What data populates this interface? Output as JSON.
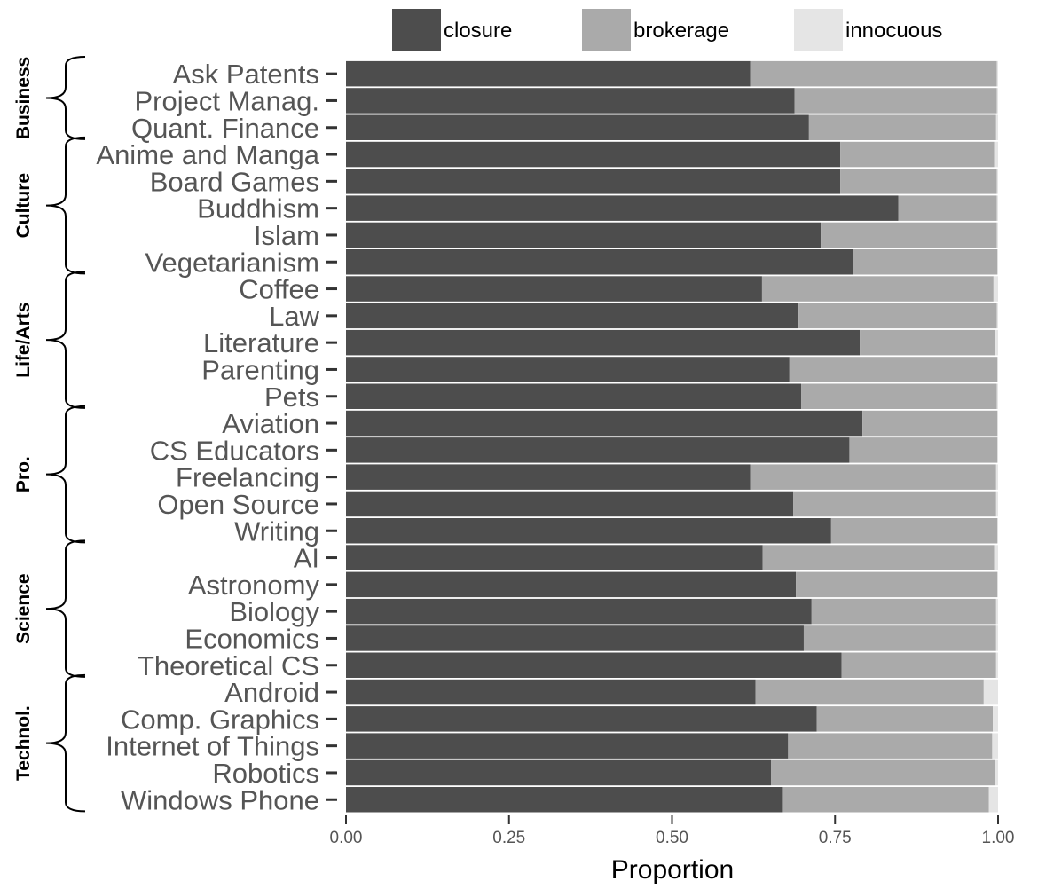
{
  "chart_data": {
    "type": "bar",
    "orientation": "horizontal",
    "stacked": true,
    "xlabel": "Proportion",
    "xlim": [
      0,
      1
    ],
    "xticks": [
      "0.00",
      "0.25",
      "0.50",
      "0.75",
      "1.00"
    ],
    "legend_position": "top",
    "grid": false,
    "series": [
      {
        "name": "closure",
        "color": "#4d4d4d"
      },
      {
        "name": "brokerage",
        "color": "#aaaaaa"
      },
      {
        "name": "innocuous",
        "color": "#e5e5e5"
      }
    ],
    "groups": [
      {
        "name": "Business",
        "items": [
          {
            "label": "Ask Patents",
            "values": [
              0.62,
              0.378,
              0.002
            ]
          },
          {
            "label": "Project Manag.",
            "values": [
              0.688,
              0.31,
              0.002
            ]
          },
          {
            "label": "Quant. Finance",
            "values": [
              0.71,
              0.287,
              0.003
            ]
          }
        ]
      },
      {
        "name": "Culture",
        "items": [
          {
            "label": "Anime and Manga",
            "values": [
              0.758,
              0.236,
              0.006
            ]
          },
          {
            "label": "Board Games",
            "values": [
              0.758,
              0.24,
              0.002
            ]
          },
          {
            "label": "Buddhism",
            "values": [
              0.847,
              0.151,
              0.002
            ]
          },
          {
            "label": "Islam",
            "values": [
              0.728,
              0.27,
              0.002
            ]
          },
          {
            "label": "Vegetarianism",
            "values": [
              0.778,
              0.221,
              0.001
            ]
          }
        ]
      },
      {
        "name": "Life/Arts",
        "items": [
          {
            "label": "Coffee",
            "values": [
              0.638,
              0.355,
              0.007
            ]
          },
          {
            "label": "Law",
            "values": [
              0.694,
              0.304,
              0.002
            ]
          },
          {
            "label": "Literature",
            "values": [
              0.788,
              0.208,
              0.004
            ]
          },
          {
            "label": "Parenting",
            "values": [
              0.68,
              0.319,
              0.001
            ]
          },
          {
            "label": "Pets",
            "values": [
              0.698,
              0.3,
              0.002
            ]
          }
        ]
      },
      {
        "name": "Pro.",
        "items": [
          {
            "label": "Aviation",
            "values": [
              0.792,
              0.207,
              0.001
            ]
          },
          {
            "label": "CS Educators",
            "values": [
              0.772,
              0.227,
              0.001
            ]
          },
          {
            "label": "Freelancing",
            "values": [
              0.62,
              0.377,
              0.003
            ]
          },
          {
            "label": "Open Source",
            "values": [
              0.686,
              0.311,
              0.003
            ]
          },
          {
            "label": "Writing",
            "values": [
              0.744,
              0.255,
              0.001
            ]
          }
        ]
      },
      {
        "name": "Science",
        "items": [
          {
            "label": "AI",
            "values": [
              0.639,
              0.355,
              0.006
            ]
          },
          {
            "label": "Astronomy",
            "values": [
              0.69,
              0.309,
              0.001
            ]
          },
          {
            "label": "Biology",
            "values": [
              0.714,
              0.283,
              0.003
            ]
          },
          {
            "label": "Economics",
            "values": [
              0.702,
              0.295,
              0.003
            ]
          },
          {
            "label": "Theoretical CS",
            "values": [
              0.76,
              0.237,
              0.003
            ]
          }
        ]
      },
      {
        "name": "Technol.",
        "items": [
          {
            "label": "Android",
            "values": [
              0.628,
              0.35,
              0.022
            ]
          },
          {
            "label": "Comp. Graphics",
            "values": [
              0.722,
              0.27,
              0.008
            ]
          },
          {
            "label": "Internet of Things",
            "values": [
              0.678,
              0.313,
              0.009
            ]
          },
          {
            "label": "Robotics",
            "values": [
              0.652,
              0.343,
              0.005
            ]
          },
          {
            "label": "Windows Phone",
            "values": [
              0.67,
              0.316,
              0.014
            ]
          }
        ]
      }
    ]
  }
}
